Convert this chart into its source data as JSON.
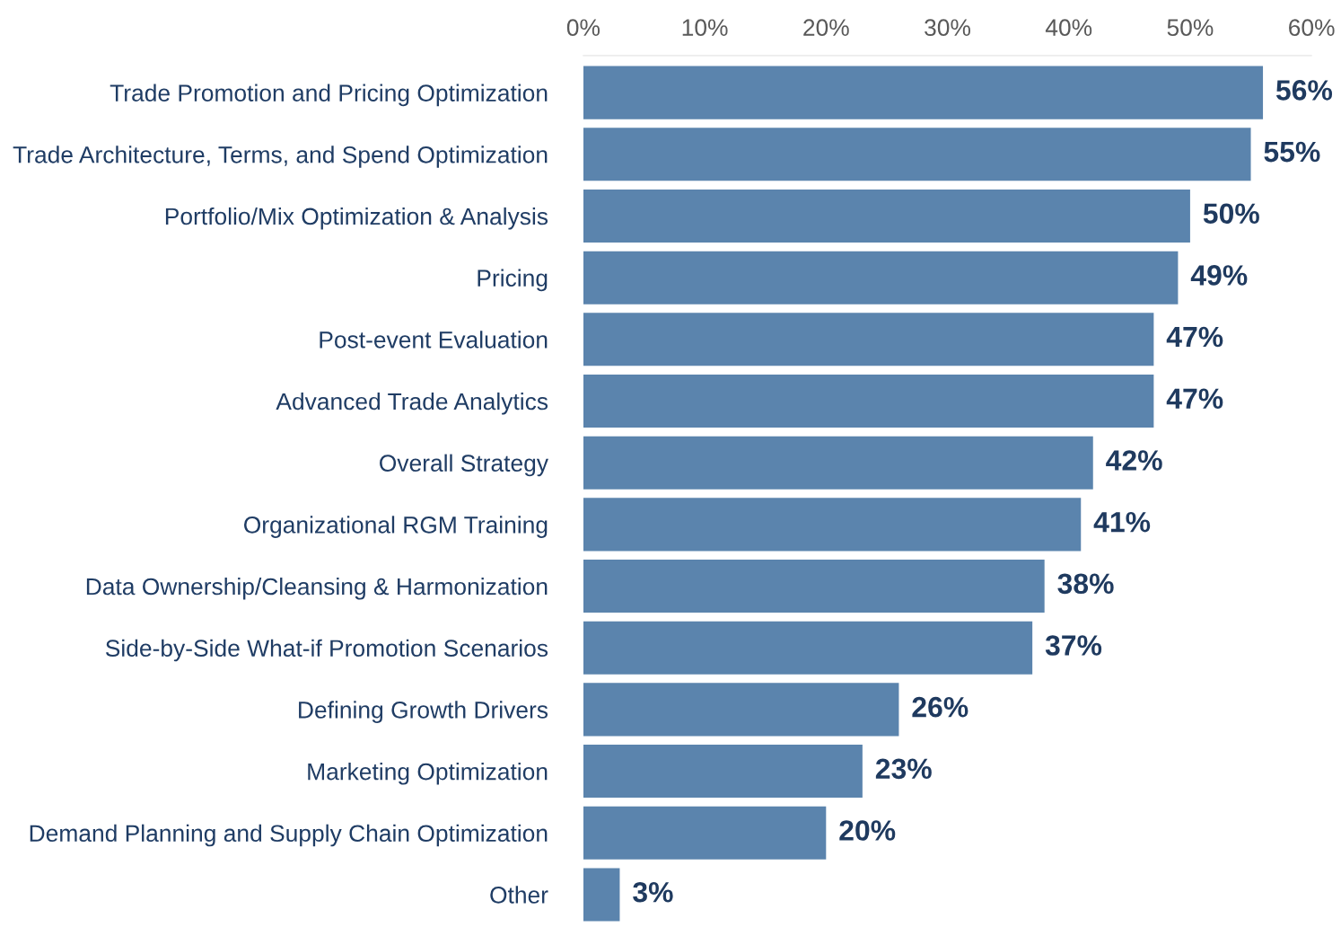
{
  "chart_data": {
    "type": "bar",
    "orientation": "horizontal",
    "categories": [
      "Trade Promotion and Pricing Optimization",
      "Trade Architecture, Terms, and Spend Optimization",
      "Portfolio/Mix Optimization & Analysis",
      "Pricing",
      "Post-event Evaluation",
      "Advanced Trade Analytics",
      "Overall Strategy",
      "Organizational RGM Training",
      "Data Ownership/Cleansing & Harmonization",
      "Side-by-Side What-if Promotion Scenarios",
      "Defining Growth Drivers",
      "Marketing Optimization",
      "Demand Planning and Supply Chain Optimization",
      "Other"
    ],
    "values": [
      56,
      55,
      50,
      49,
      47,
      47,
      42,
      41,
      38,
      37,
      26,
      23,
      20,
      3
    ],
    "value_labels": [
      "56%",
      "55%",
      "50%",
      "49%",
      "47%",
      "47%",
      "42%",
      "41%",
      "38%",
      "37%",
      "26%",
      "23%",
      "20%",
      "3%"
    ],
    "color": "#5b84ad",
    "xlim": [
      0,
      60
    ],
    "xticks": [
      {
        "value": 0,
        "label": "0%"
      },
      {
        "value": 10,
        "label": "10%"
      },
      {
        "value": 20,
        "label": "20%"
      },
      {
        "value": 30,
        "label": "30%"
      },
      {
        "value": 40,
        "label": "40%"
      },
      {
        "value": 50,
        "label": "50%"
      },
      {
        "value": 60,
        "label": "60%"
      }
    ],
    "grid": false,
    "legend": false
  }
}
